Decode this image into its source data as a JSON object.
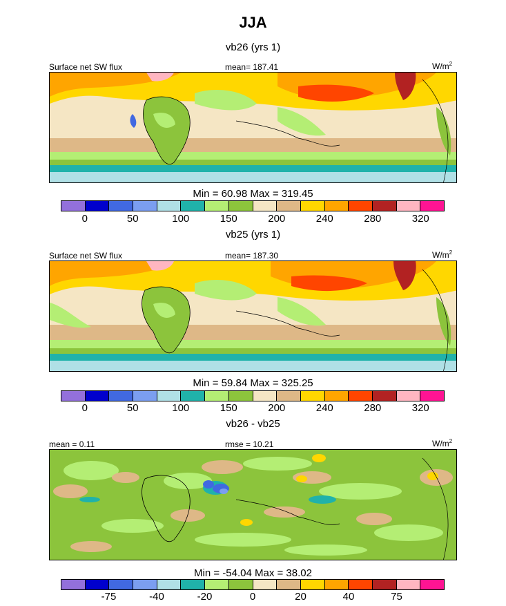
{
  "chart_data": [
    {
      "type": "heatmap",
      "season": "JJA",
      "title": "vb26 (yrs 1)",
      "variable": "Surface net SW flux",
      "stat_label": "mean= 187.41",
      "units": "W/m",
      "units_exp": "2",
      "min_max": "Min =  60.98 Max = 319.45",
      "colorbar": {
        "colors": [
          "#9370db",
          "#0000cd",
          "#4169e1",
          "#7b9ef0",
          "#b0e0e6",
          "#20b2aa",
          "#b4ee74",
          "#8cc43c",
          "#f5e6c4",
          "#deb887",
          "#ffd700",
          "#ffa500",
          "#ff4500",
          "#b22222",
          "#ffb6c1",
          "#ff1493"
        ],
        "labels": [
          "0",
          "50",
          "100",
          "150",
          "200",
          "240",
          "280",
          "320"
        ]
      }
    },
    {
      "type": "heatmap",
      "title": "vb25 (yrs 1)",
      "variable": "Surface net SW flux",
      "stat_label": "mean= 187.30",
      "units": "W/m",
      "units_exp": "2",
      "min_max": "Min =  59.84 Max = 325.25",
      "colorbar": {
        "colors": [
          "#9370db",
          "#0000cd",
          "#4169e1",
          "#7b9ef0",
          "#b0e0e6",
          "#20b2aa",
          "#b4ee74",
          "#8cc43c",
          "#f5e6c4",
          "#deb887",
          "#ffd700",
          "#ffa500",
          "#ff4500",
          "#b22222",
          "#ffb6c1",
          "#ff1493"
        ],
        "labels": [
          "0",
          "50",
          "100",
          "150",
          "200",
          "240",
          "280",
          "320"
        ]
      }
    },
    {
      "type": "heatmap",
      "title": "vb26 - vb25",
      "stat_label_left": "mean =   0.11",
      "stat_label": "rmse =  10.21",
      "units": "W/m",
      "units_exp": "2",
      "min_max": "Min = -54.04 Max =  38.02",
      "colorbar": {
        "colors": [
          "#9370db",
          "#0000cd",
          "#4169e1",
          "#7b9ef0",
          "#b0e0e6",
          "#20b2aa",
          "#b4ee74",
          "#8cc43c",
          "#f5e6c4",
          "#deb887",
          "#ffd700",
          "#ffa500",
          "#ff4500",
          "#b22222",
          "#ffb6c1",
          "#ff1493"
        ],
        "labels": [
          "-75",
          "-40",
          "-20",
          "0",
          "20",
          "40",
          "75"
        ]
      }
    }
  ]
}
